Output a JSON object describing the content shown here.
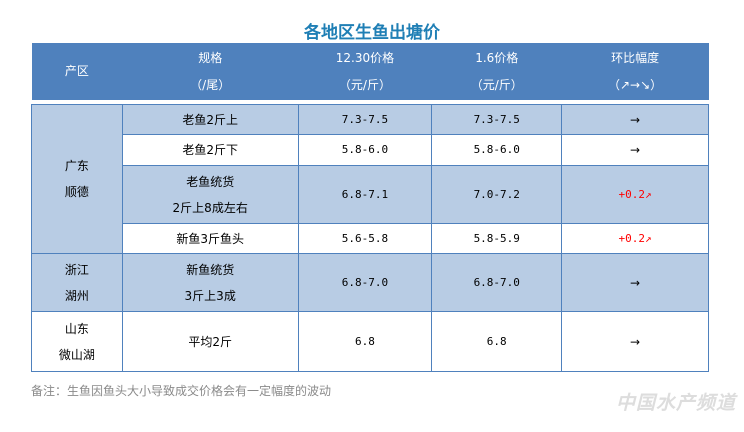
{
  "title": "各地区生鱼出塘价",
  "headers": [
    {
      "l1": "产区",
      "l2": ""
    },
    {
      "l1": "规格",
      "l2": "（/尾）"
    },
    {
      "l1": "12.30价格",
      "l2": "（元/斤）"
    },
    {
      "l1": "1.6价格",
      "l2": "（元/斤）"
    },
    {
      "l1": "环比幅度",
      "l2": "（↗→↘）"
    }
  ],
  "regions": [
    {
      "l1": "广东",
      "l2": "顺德"
    },
    {
      "l1": "浙江",
      "l2": "湖州"
    },
    {
      "l1": "山东",
      "l2": "微山湖"
    }
  ],
  "rows": [
    {
      "spec1": "老鱼2斤上",
      "spec2": "",
      "p1": "7.3-7.5",
      "p2": "7.3-7.5",
      "change": "→"
    },
    {
      "spec1": "老鱼2斤下",
      "spec2": "",
      "p1": "5.8-6.0",
      "p2": "5.8-6.0",
      "change": "→"
    },
    {
      "spec1": "老鱼统货",
      "spec2": "2斤上8成左右",
      "p1": "6.8-7.1",
      "p2": "7.0-7.2",
      "change": "+0.2↗"
    },
    {
      "spec1": "新鱼3斤鱼头",
      "spec2": "",
      "p1": "5.6-5.8",
      "p2": "5.8-5.9",
      "change": "+0.2↗"
    },
    {
      "spec1": "新鱼统货",
      "spec2": "3斤上3成",
      "p1": "6.8-7.0",
      "p2": "6.8-7.0",
      "change": "→"
    },
    {
      "spec1": "平均2斤",
      "spec2": "",
      "p1": "6.8",
      "p2": "6.8",
      "change": "→"
    }
  ],
  "note": "备注：生鱼因鱼头大小导致成交价格会有一定幅度的波动",
  "watermark": "中国水产频道",
  "colors": {
    "header": "#4f81bd",
    "band": "#b8cce4",
    "title": "#1f7fb5",
    "up": "#ff0000"
  }
}
